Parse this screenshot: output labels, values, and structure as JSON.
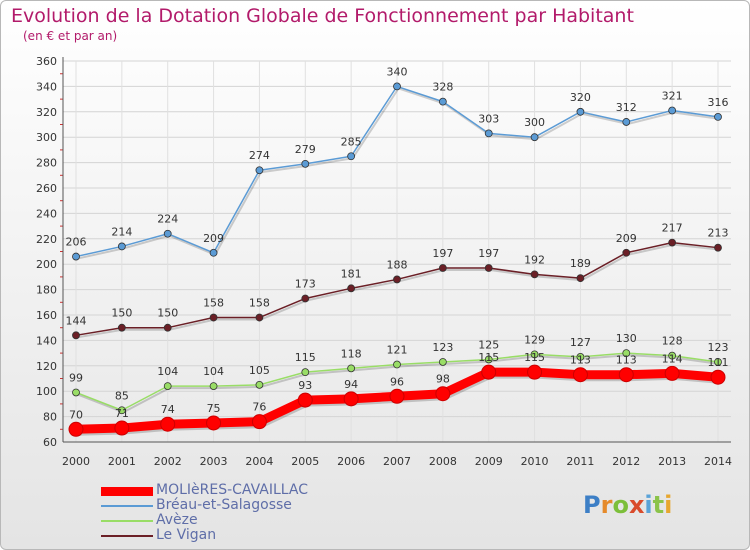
{
  "chart_data": {
    "type": "line",
    "title": "Evolution de la Dotation Globale de Fonctionnement par Habitant",
    "subtitle": "(en € et par an)",
    "xlabel": "",
    "ylabel": "",
    "categories": [
      "2000",
      "2001",
      "2002",
      "2003",
      "2004",
      "2005",
      "2006",
      "2007",
      "2008",
      "2009",
      "2010",
      "2011",
      "2012",
      "2013",
      "2014"
    ],
    "ylim": [
      60,
      360
    ],
    "yticks": [
      "60",
      "80",
      "100",
      "120",
      "140",
      "160",
      "180",
      "200",
      "220",
      "240",
      "260",
      "280",
      "300",
      "320",
      "340",
      "360"
    ],
    "grid": true,
    "legend_position": "bottom-left",
    "series": [
      {
        "name": "MOLIèRES-CAVAILLAC",
        "color": "#ff0000",
        "values": [
          70,
          71,
          74,
          75,
          76,
          93,
          94,
          96,
          98,
          115,
          115,
          113,
          113,
          114,
          111
        ],
        "labels": [
          "70",
          "71",
          "74",
          "75",
          "76",
          "93",
          "94",
          "96",
          "98",
          "115",
          "115",
          "113",
          "113",
          "114",
          "111"
        ]
      },
      {
        "name": "Bréau-et-Salagosse",
        "color": "#5b9bd5",
        "values": [
          206,
          214,
          224,
          209,
          274,
          279,
          285,
          340,
          328,
          303,
          300,
          320,
          312,
          321,
          316
        ],
        "labels": [
          "206",
          "214",
          "224",
          "209",
          "274",
          "279",
          "285",
          "340",
          "328",
          "303",
          "300",
          "320",
          "312",
          "321",
          "316"
        ]
      },
      {
        "name": "Avèze",
        "color": "#99dd66",
        "values": [
          99,
          85,
          104,
          104,
          105,
          115,
          118,
          121,
          123,
          125,
          129,
          127,
          130,
          128,
          123
        ],
        "labels": [
          "99",
          "85",
          "104",
          "104",
          "105",
          "115",
          "118",
          "121",
          "123",
          "125",
          "129",
          "127",
          "130",
          "128",
          "123"
        ]
      },
      {
        "name": "Le Vigan",
        "color": "#6b1f26",
        "values": [
          144,
          150,
          150,
          158,
          158,
          173,
          181,
          188,
          197,
          197,
          192,
          189,
          209,
          217,
          213
        ],
        "labels": [
          "144",
          "150",
          "150",
          "158",
          "158",
          "173",
          "181",
          "188",
          "197",
          "197",
          "192",
          "189",
          "209",
          "217",
          "213"
        ]
      }
    ]
  },
  "logo": {
    "letters": [
      "P",
      "r",
      "o",
      "x",
      "i",
      "t",
      "i"
    ],
    "colors": [
      "#3d7fc6",
      "#e58a2a",
      "#7cbf3a",
      "#d94b2b",
      "#5aa3d8",
      "#8bc34a",
      "#e7a72f"
    ]
  }
}
